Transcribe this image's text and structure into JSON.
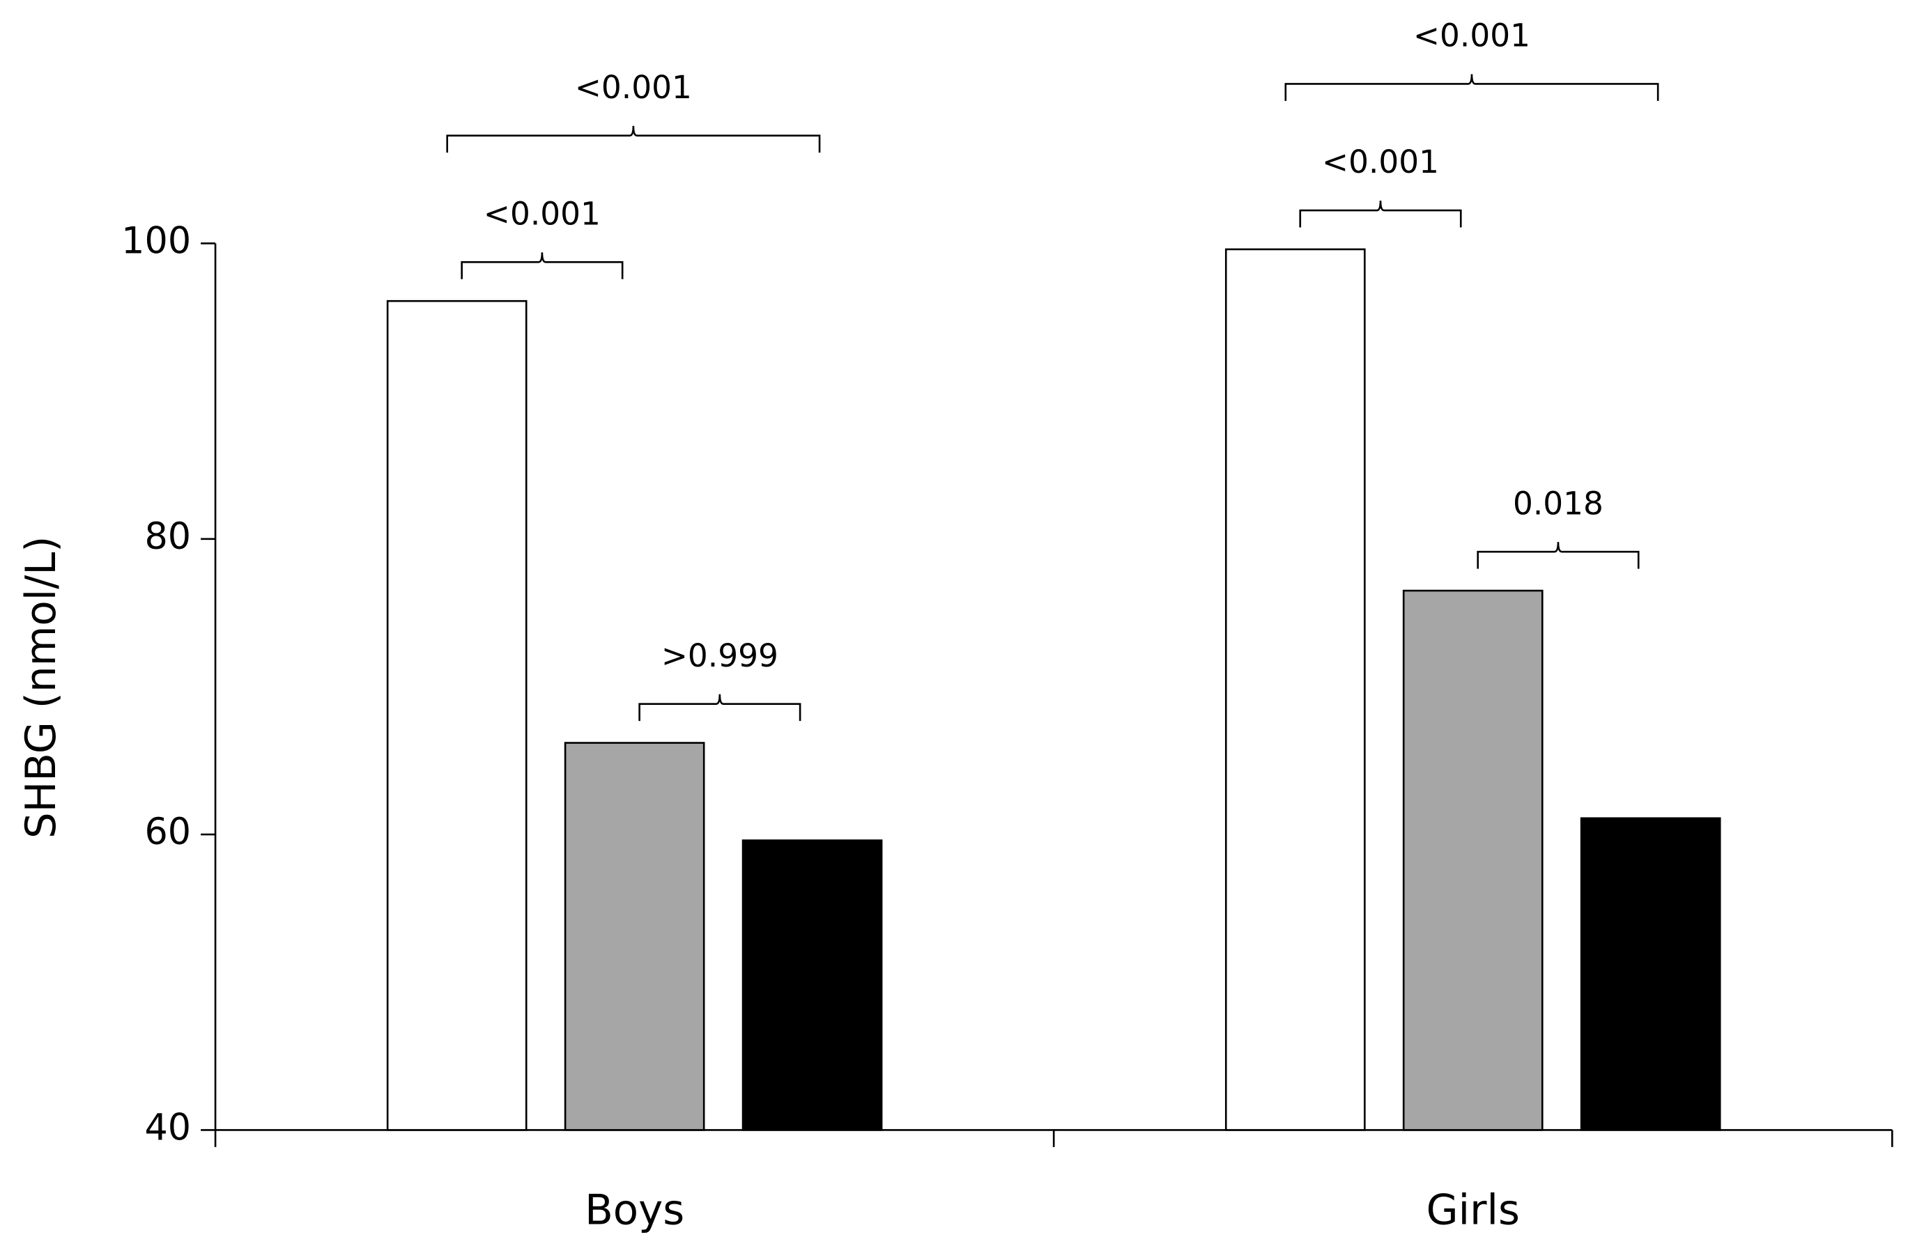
{
  "chart_data": {
    "type": "bar",
    "y_label": "SHBG (nmol/L)",
    "categories": [
      "Boys",
      "Girls"
    ],
    "series": [
      {
        "color": "#ffffff",
        "values": [
          96.1,
          99.6
        ]
      },
      {
        "color": "#a6a6a6",
        "values": [
          66.2,
          76.5
        ]
      },
      {
        "color": "#000000",
        "values": [
          59.6,
          61.1
        ]
      }
    ],
    "ylim": [
      40,
      100
    ],
    "yticks": [
      40,
      60,
      80,
      100
    ],
    "grid": false,
    "annotations": [
      {
        "text": "<0.001",
        "category": 0,
        "series": [
          0,
          1
        ]
      },
      {
        "text": "<0.001",
        "category": 0,
        "series": [
          0,
          2
        ]
      },
      {
        "text": ">0.999",
        "category": 0,
        "series": [
          1,
          2
        ]
      },
      {
        "text": "<0.001",
        "category": 1,
        "series": [
          0,
          1
        ]
      },
      {
        "text": "<0.001",
        "category": 1,
        "series": [
          0,
          2
        ]
      },
      {
        "text": "0.018",
        "category": 1,
        "series": [
          1,
          2
        ]
      }
    ]
  }
}
